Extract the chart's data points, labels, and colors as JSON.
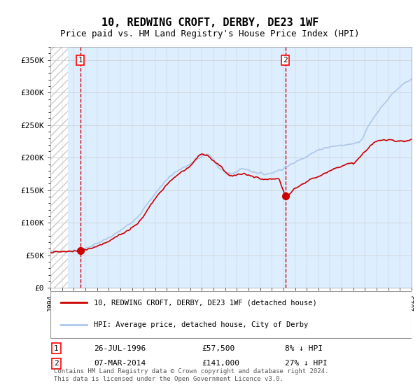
{
  "title": "10, REDWING CROFT, DERBY, DE23 1WF",
  "subtitle": "Price paid vs. HM Land Registry's House Price Index (HPI)",
  "ylim": [
    0,
    370000
  ],
  "yticks": [
    0,
    50000,
    100000,
    150000,
    200000,
    250000,
    300000,
    350000
  ],
  "ytick_labels": [
    "£0",
    "£50K",
    "£100K",
    "£150K",
    "£200K",
    "£250K",
    "£300K",
    "£350K"
  ],
  "xlabel_start_year": 1994,
  "xlabel_end_year": 2025,
  "sale1_date": "26-JUL-1996",
  "sale1_price": 57500,
  "sale1_x": 1996.57,
  "sale1_label": "1",
  "sale1_hpi_diff": "8% ↓ HPI",
  "sale2_date": "07-MAR-2014",
  "sale2_price": 141000,
  "sale2_x": 2014.18,
  "sale2_label": "2",
  "sale2_hpi_diff": "27% ↓ HPI",
  "legend_line1": "10, REDWING CROFT, DERBY, DE23 1WF (detached house)",
  "legend_line2": "HPI: Average price, detached house, City of Derby",
  "footer": "Contains HM Land Registry data © Crown copyright and database right 2024.\nThis data is licensed under the Open Government Licence v3.0.",
  "hpi_color": "#aec6e8",
  "price_color": "#cc0000",
  "bg_color": "#ddeeff",
  "hatch_color": "#cccccc",
  "grid_color": "#cccccc",
  "vline_color": "#cc0000"
}
